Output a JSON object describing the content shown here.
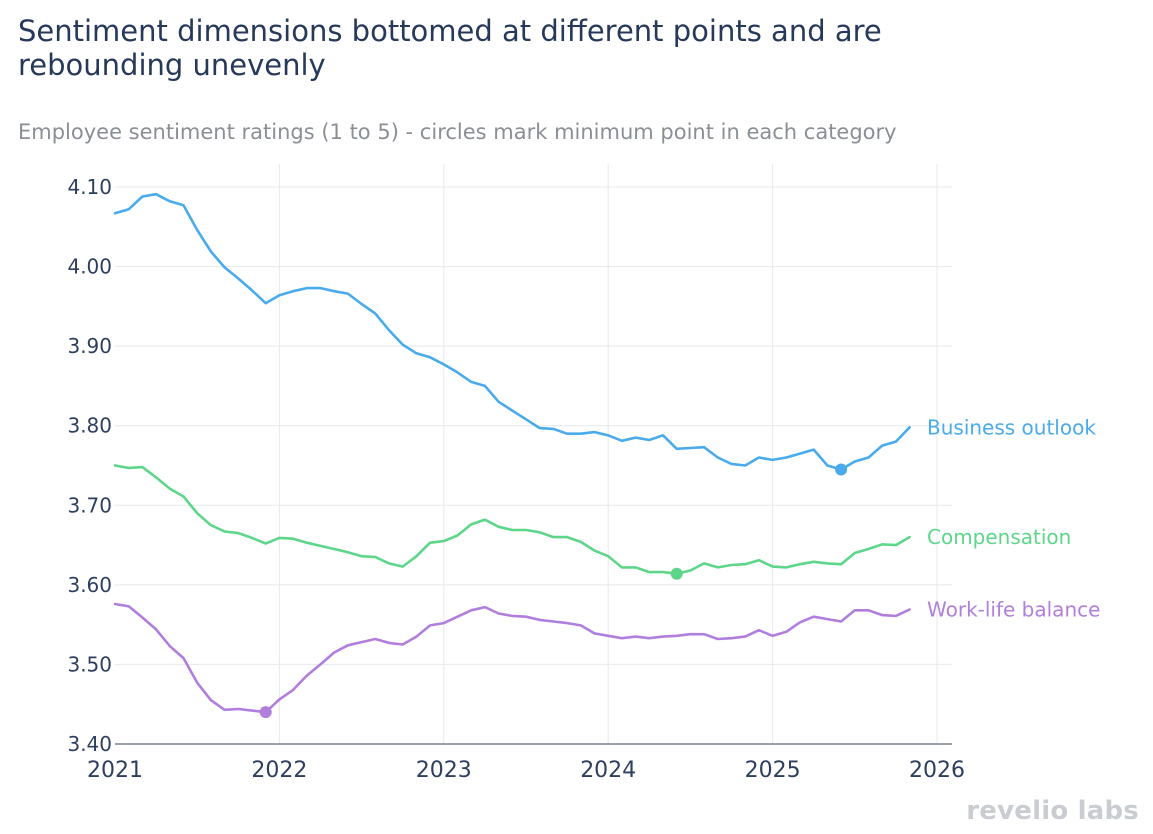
{
  "title": "Sentiment dimensions bottomed at different points and are rebounding unevenly",
  "subtitle": "Employee sentiment ratings (1 to 5) - circles mark minimum point in each category",
  "brand": "revelio labs",
  "chart_data": {
    "type": "line",
    "x_range": [
      2021.0,
      2026.0
    ],
    "x_ticks": [
      2021,
      2022,
      2023,
      2024,
      2025,
      2026
    ],
    "x_tick_labels": [
      "2021",
      "2022",
      "2023",
      "2024",
      "2025",
      "2026"
    ],
    "ylim": [
      3.4,
      4.1
    ],
    "y_ticks": [
      3.4,
      3.5,
      3.6,
      3.7,
      3.8,
      3.9,
      4.0,
      4.1
    ],
    "y_tick_labels": [
      "3.40",
      "3.50",
      "3.60",
      "3.70",
      "3.80",
      "3.90",
      "4.00",
      "4.10"
    ],
    "grid": true,
    "legend": "inline labels at right end of each line",
    "series": [
      {
        "name": "Business outlook",
        "color": "#4aabec",
        "x": [
          2021.0,
          2021.0833,
          2021.1667,
          2021.25,
          2021.3333,
          2021.4167,
          2021.5,
          2021.5833,
          2021.6667,
          2021.75,
          2021.8333,
          2021.9167,
          2022.0,
          2022.0833,
          2022.1667,
          2022.25,
          2022.3333,
          2022.4167,
          2022.5,
          2022.5833,
          2022.6667,
          2022.75,
          2022.8333,
          2022.9167,
          2023.0,
          2023.0833,
          2023.1667,
          2023.25,
          2023.3333,
          2023.4167,
          2023.5,
          2023.5833,
          2023.6667,
          2023.75,
          2023.8333,
          2023.9167,
          2024.0,
          2024.0833,
          2024.1667,
          2024.25,
          2024.3333,
          2024.4167,
          2024.5,
          2024.5833,
          2024.6667,
          2024.75,
          2024.8333,
          2024.9167,
          2025.0,
          2025.0833,
          2025.1667,
          2025.25,
          2025.3333,
          2025.4167,
          2025.5,
          2025.5833,
          2025.6667,
          2025.75,
          2025.8333
        ],
        "values": [
          4.067,
          4.072,
          4.088,
          4.091,
          4.082,
          4.077,
          4.046,
          4.019,
          3.999,
          3.985,
          3.97,
          3.954,
          3.964,
          3.969,
          3.973,
          3.973,
          3.969,
          3.966,
          3.953,
          3.941,
          3.92,
          3.902,
          3.891,
          3.886,
          3.877,
          3.867,
          3.855,
          3.85,
          3.83,
          3.819,
          3.808,
          3.797,
          3.796,
          3.79,
          3.79,
          3.792,
          3.788,
          3.781,
          3.785,
          3.782,
          3.788,
          3.771,
          3.772,
          3.773,
          3.76,
          3.752,
          3.75,
          3.76,
          3.757,
          3.76,
          3.765,
          3.77,
          3.75,
          3.745,
          3.755,
          3.76,
          3.775,
          3.78,
          3.798
        ],
        "min_point": {
          "x": 2025.4167,
          "y": 3.745
        }
      },
      {
        "name": "Compensation",
        "color": "#5ed68a",
        "x": [
          2021.0,
          2021.0833,
          2021.1667,
          2021.25,
          2021.3333,
          2021.4167,
          2021.5,
          2021.5833,
          2021.6667,
          2021.75,
          2021.8333,
          2021.9167,
          2022.0,
          2022.0833,
          2022.1667,
          2022.25,
          2022.3333,
          2022.4167,
          2022.5,
          2022.5833,
          2022.6667,
          2022.75,
          2022.8333,
          2022.9167,
          2023.0,
          2023.0833,
          2023.1667,
          2023.25,
          2023.3333,
          2023.4167,
          2023.5,
          2023.5833,
          2023.6667,
          2023.75,
          2023.8333,
          2023.9167,
          2024.0,
          2024.0833,
          2024.1667,
          2024.25,
          2024.3333,
          2024.4167,
          2024.5,
          2024.5833,
          2024.6667,
          2024.75,
          2024.8333,
          2024.9167,
          2025.0,
          2025.0833,
          2025.1667,
          2025.25,
          2025.3333,
          2025.4167,
          2025.5,
          2025.5833,
          2025.6667,
          2025.75,
          2025.8333
        ],
        "values": [
          3.75,
          3.747,
          3.748,
          3.735,
          3.721,
          3.711,
          3.69,
          3.675,
          3.667,
          3.665,
          3.659,
          3.652,
          3.659,
          3.658,
          3.653,
          3.649,
          3.645,
          3.641,
          3.636,
          3.635,
          3.627,
          3.623,
          3.636,
          3.653,
          3.655,
          3.662,
          3.676,
          3.682,
          3.673,
          3.669,
          3.669,
          3.666,
          3.66,
          3.66,
          3.654,
          3.643,
          3.636,
          3.622,
          3.622,
          3.616,
          3.616,
          3.614,
          3.618,
          3.627,
          3.622,
          3.625,
          3.626,
          3.631,
          3.623,
          3.622,
          3.626,
          3.629,
          3.627,
          3.626,
          3.64,
          3.645,
          3.651,
          3.65,
          3.66
        ],
        "min_point": {
          "x": 2024.4167,
          "y": 3.614
        }
      },
      {
        "name": "Work-life balance",
        "color": "#b07fdd",
        "x": [
          2021.0,
          2021.0833,
          2021.1667,
          2021.25,
          2021.3333,
          2021.4167,
          2021.5,
          2021.5833,
          2021.6667,
          2021.75,
          2021.8333,
          2021.9167,
          2022.0,
          2022.0833,
          2022.1667,
          2022.25,
          2022.3333,
          2022.4167,
          2022.5,
          2022.5833,
          2022.6667,
          2022.75,
          2022.8333,
          2022.9167,
          2023.0,
          2023.0833,
          2023.1667,
          2023.25,
          2023.3333,
          2023.4167,
          2023.5,
          2023.5833,
          2023.6667,
          2023.75,
          2023.8333,
          2023.9167,
          2024.0,
          2024.0833,
          2024.1667,
          2024.25,
          2024.3333,
          2024.4167,
          2024.5,
          2024.5833,
          2024.6667,
          2024.75,
          2024.8333,
          2024.9167,
          2025.0,
          2025.0833,
          2025.1667,
          2025.25,
          2025.3333,
          2025.4167,
          2025.5,
          2025.5833,
          2025.6667,
          2025.75,
          2025.8333
        ],
        "values": [
          3.576,
          3.573,
          3.559,
          3.544,
          3.523,
          3.508,
          3.477,
          3.455,
          3.443,
          3.444,
          3.442,
          3.44,
          3.456,
          3.468,
          3.486,
          3.5,
          3.515,
          3.524,
          3.528,
          3.532,
          3.527,
          3.525,
          3.535,
          3.549,
          3.552,
          3.56,
          3.568,
          3.572,
          3.564,
          3.561,
          3.56,
          3.556,
          3.554,
          3.552,
          3.549,
          3.539,
          3.536,
          3.533,
          3.535,
          3.533,
          3.535,
          3.536,
          3.538,
          3.538,
          3.532,
          3.533,
          3.535,
          3.543,
          3.536,
          3.541,
          3.553,
          3.56,
          3.557,
          3.554,
          3.568,
          3.568,
          3.562,
          3.561,
          3.569
        ],
        "min_point": {
          "x": 2021.9167,
          "y": 3.44
        }
      }
    ]
  }
}
